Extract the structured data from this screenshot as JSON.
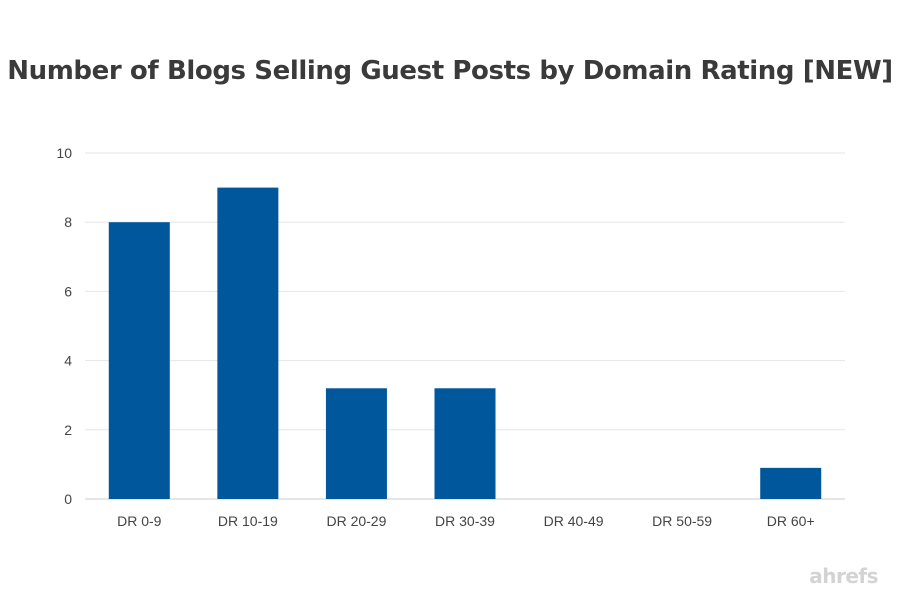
{
  "chart_data": {
    "type": "bar",
    "title": "Number of Blogs Selling Guest Posts by Domain Rating [NEW]",
    "xlabel": "",
    "ylabel": "",
    "categories": [
      "DR 0-9",
      "DR 10-19",
      "DR 20-29",
      "DR 30-39",
      "DR 40-49",
      "DR 50-59",
      "DR 60+"
    ],
    "values": [
      8,
      9,
      3.2,
      3.2,
      0,
      0,
      0.9
    ],
    "ylim": [
      0,
      10
    ],
    "yticks": [
      0,
      2,
      4,
      6,
      8,
      10
    ],
    "grid": true,
    "legend": "none",
    "bar_color": "#01579b"
  },
  "watermark": "ahrefs",
  "colors": {
    "grid": "#e6e6e6",
    "axis": "#cccccc"
  }
}
